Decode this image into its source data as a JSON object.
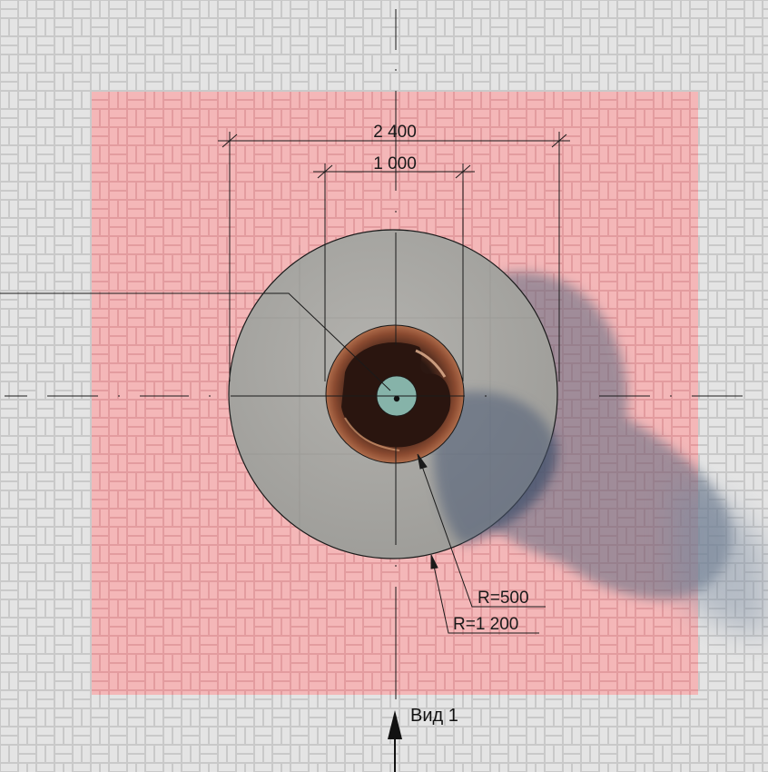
{
  "dimensions": {
    "overall_width": "2 400",
    "inner_width": "1 000"
  },
  "radii": {
    "inner": "R=500",
    "outer": "R=1 200"
  },
  "view": {
    "label": "Вид 1"
  },
  "colors": {
    "outer_paving": "#e4e4e4",
    "pink_paving": "#f4b4b6",
    "concrete": "#a9a8a4",
    "bowl_copper": "#b87050",
    "bowl_dark": "#2e1a14",
    "center_teal": "#86b3a9",
    "shadow": "#5e6c80",
    "line": "#1a1a1a"
  }
}
